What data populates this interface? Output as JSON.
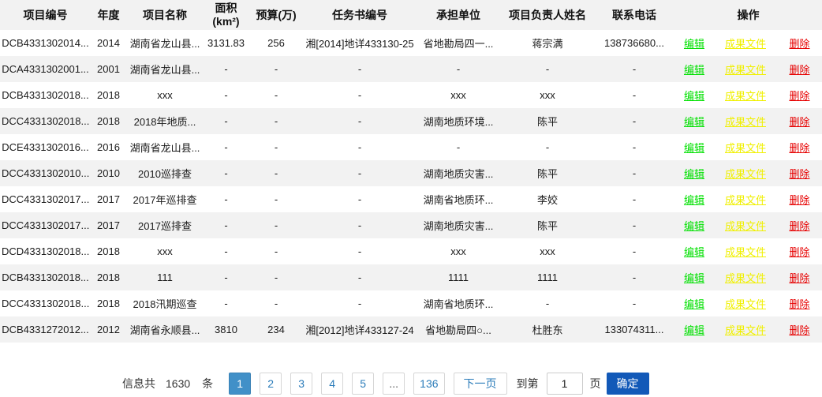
{
  "table": {
    "headers": {
      "project_id": "项目编号",
      "year": "年度",
      "project_name": "项目名称",
      "area": "面积(km²)",
      "budget": "预算(万)",
      "task_no": "任务书编号",
      "unit": "承担单位",
      "leader": "项目负责人姓名",
      "phone": "联系电话",
      "operations": "操作"
    },
    "actions": {
      "edit": "编辑",
      "result_file": "成果文件",
      "delete": "删除"
    },
    "rows": [
      {
        "id": "DCB4331302014...",
        "year": "2014",
        "name": "湖南省龙山县...",
        "area": "3131.83",
        "budget": "256",
        "task_no": "湘[2014]地详433130-25",
        "unit": "省地勘局四一...",
        "leader": "蒋宗满",
        "phone": "138736680..."
      },
      {
        "id": "DCA4331302001...",
        "year": "2001",
        "name": "湖南省龙山县...",
        "area": "-",
        "budget": "-",
        "task_no": "-",
        "unit": "-",
        "leader": "-",
        "phone": "-"
      },
      {
        "id": "DCB4331302018...",
        "year": "2018",
        "name": "xxx",
        "area": "-",
        "budget": "-",
        "task_no": "-",
        "unit": "xxx",
        "leader": "xxx",
        "phone": "-"
      },
      {
        "id": "DCC4331302018...",
        "year": "2018",
        "name": "2018年地质...",
        "area": "-",
        "budget": "-",
        "task_no": "-",
        "unit": "湖南地质环境...",
        "leader": "陈平",
        "phone": "-"
      },
      {
        "id": "DCE4331302016...",
        "year": "2016",
        "name": "湖南省龙山县...",
        "area": "-",
        "budget": "-",
        "task_no": "-",
        "unit": "-",
        "leader": "-",
        "phone": "-"
      },
      {
        "id": "DCC4331302010...",
        "year": "2010",
        "name": "2010巡排查",
        "area": "-",
        "budget": "-",
        "task_no": "-",
        "unit": "湖南地质灾害...",
        "leader": "陈平",
        "phone": "-"
      },
      {
        "id": "DCC4331302017...",
        "year": "2017",
        "name": "2017年巡排查",
        "area": "-",
        "budget": "-",
        "task_no": "-",
        "unit": "湖南省地质环...",
        "leader": "李姣",
        "phone": "-"
      },
      {
        "id": "DCC4331302017...",
        "year": "2017",
        "name": "2017巡排查",
        "area": "-",
        "budget": "-",
        "task_no": "-",
        "unit": "湖南地质灾害...",
        "leader": "陈平",
        "phone": "-"
      },
      {
        "id": "DCD4331302018...",
        "year": "2018",
        "name": "xxx",
        "area": "-",
        "budget": "-",
        "task_no": "-",
        "unit": "xxx",
        "leader": "xxx",
        "phone": "-"
      },
      {
        "id": "DCB4331302018...",
        "year": "2018",
        "name": "111",
        "area": "-",
        "budget": "-",
        "task_no": "-",
        "unit": "1111",
        "leader": "1111",
        "phone": "-"
      },
      {
        "id": "DCC4331302018...",
        "year": "2018",
        "name": "2018汛期巡查",
        "area": "-",
        "budget": "-",
        "task_no": "-",
        "unit": "湖南省地质环...",
        "leader": "-",
        "phone": "-"
      },
      {
        "id": "DCB4331272012...",
        "year": "2012",
        "name": "湖南省永顺县...",
        "area": "3810",
        "budget": "234",
        "task_no": "湘[2012]地详433127-24",
        "unit": "省地勘局四○...",
        "leader": "杜胜东",
        "phone": "133074311..."
      }
    ]
  },
  "pagination": {
    "info_label": "信息共",
    "total": "1630",
    "unit": "条",
    "pages": [
      "1",
      "2",
      "3",
      "4",
      "5",
      "...",
      "136"
    ],
    "active_page": "1",
    "next_label": "下一页",
    "goto_prefix": "到第",
    "goto_value": "1",
    "goto_suffix": "页",
    "confirm_label": "确定"
  },
  "colors": {
    "header_bg": "#f2f2f2",
    "row_alt_bg": "#f2f2f2",
    "edit_link": "#00e000",
    "result_file_link": "#f0f000",
    "delete_link": "#e60000",
    "page_active_bg": "#4190c8",
    "page_text": "#2b7cba",
    "confirm_bg": "#1259b8"
  }
}
